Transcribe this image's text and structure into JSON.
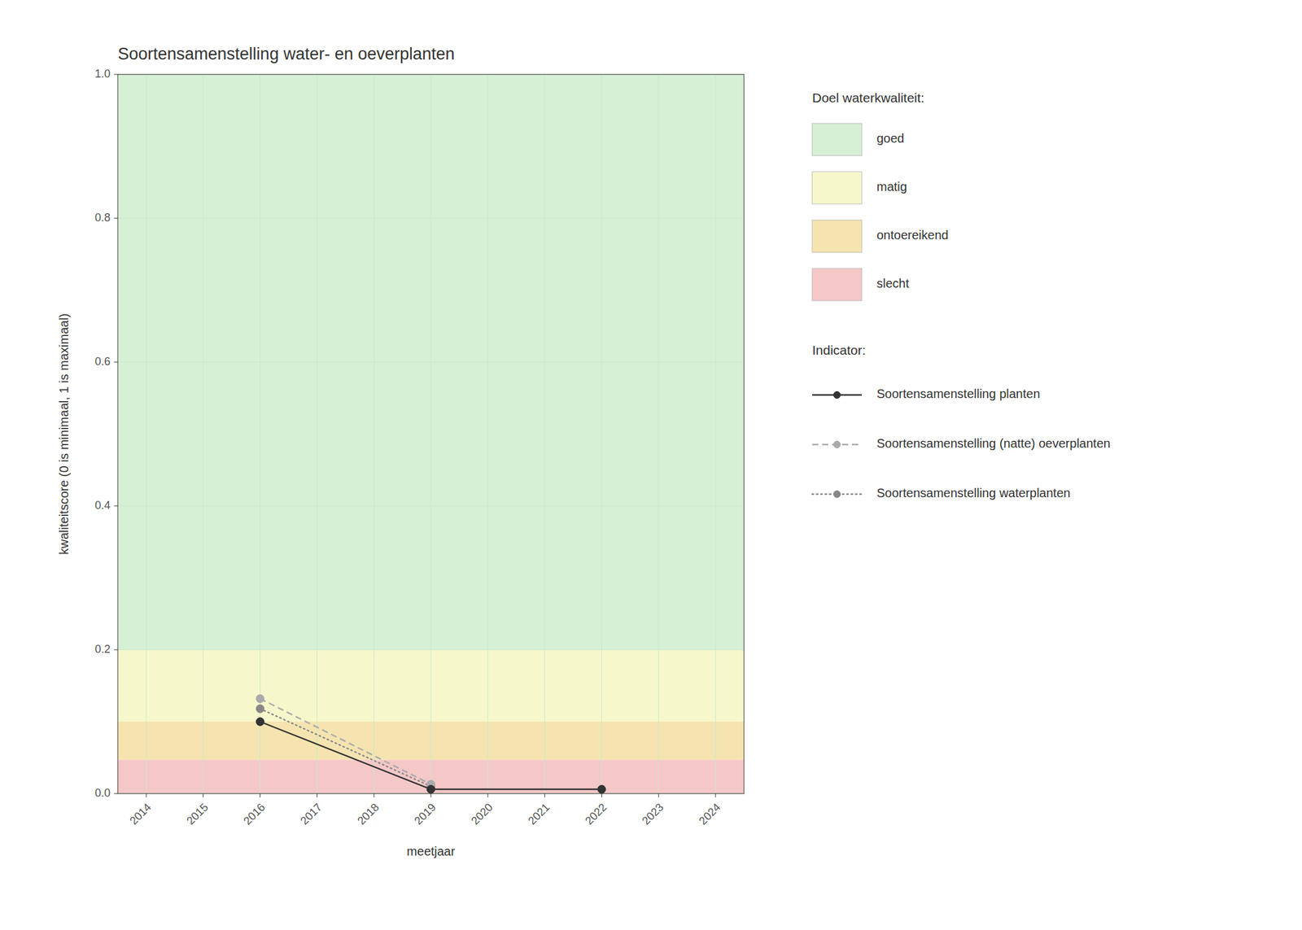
{
  "chart_data": {
    "type": "line",
    "title": "Soortensamenstelling water- en oeverplanten",
    "x_label": "meetjaar",
    "y_label": "kwaliteitscore (0 is minimaal, 1 is maximaal)",
    "xlim": [
      2013.5,
      2024.5
    ],
    "ylim": [
      0.0,
      1.0
    ],
    "xticks": [
      2014,
      2015,
      2016,
      2017,
      2018,
      2019,
      2020,
      2021,
      2022,
      2023,
      2024
    ],
    "yticks": [
      {
        "value": 0.0,
        "label": "0.0"
      },
      0.2,
      0.4,
      0.6,
      0.8,
      {
        "value": 1.0,
        "label": "1.0"
      }
    ],
    "grid": true,
    "bands_title": "Doel waterkwaliteit:",
    "bands": [
      {
        "name": "goed",
        "ymin": 0.2,
        "ymax": 1.0,
        "color": "#d6f0d6"
      },
      {
        "name": "matig",
        "ymin": 0.1,
        "ymax": 0.2,
        "color": "#f7f7cc"
      },
      {
        "name": "ontoereikend",
        "ymin": 0.047,
        "ymax": 0.1,
        "color": "#f5e4b0"
      },
      {
        "name": "slecht",
        "ymin": 0.0,
        "ymax": 0.047,
        "color": "#f5c8c8"
      }
    ],
    "series_title": "Indicator:",
    "series": [
      {
        "name": "Soortensamenstelling planten",
        "x": [
          2016,
          2019,
          2022
        ],
        "values": [
          0.1,
          0.006,
          0.006
        ],
        "color": "#333333",
        "line_style": "solid",
        "marker": "circle"
      },
      {
        "name": "Soortensamenstelling (natte) oeverplanten",
        "x": [
          2016,
          2019
        ],
        "values": [
          0.132,
          0.013
        ],
        "color": "#aaaaaa",
        "line_style": "dashed",
        "marker": "circle"
      },
      {
        "name": "Soortensamenstelling waterplanten",
        "x": [
          2016,
          2019
        ],
        "values": [
          0.118,
          0.01
        ],
        "color": "#888888",
        "line_style": "dotted",
        "marker": "circle"
      }
    ]
  }
}
